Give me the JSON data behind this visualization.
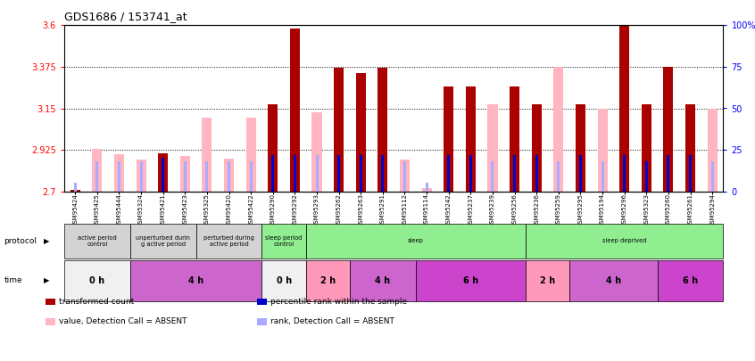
{
  "title": "GDS1686 / 153741_at",
  "samples": [
    "GSM95424",
    "GSM95425",
    "GSM95444",
    "GSM95324",
    "GSM95421",
    "GSM95423",
    "GSM95325",
    "GSM95420",
    "GSM95422",
    "GSM95290",
    "GSM95292",
    "GSM95293",
    "GSM95262",
    "GSM95263",
    "GSM95291",
    "GSM95112",
    "GSM95114",
    "GSM95242",
    "GSM95237",
    "GSM95239",
    "GSM95256",
    "GSM95236",
    "GSM95259",
    "GSM95295",
    "GSM95194",
    "GSM95296",
    "GSM95323",
    "GSM95260",
    "GSM95261",
    "GSM95294"
  ],
  "values": [
    2.71,
    2.93,
    2.9,
    2.87,
    2.905,
    2.89,
    3.1,
    2.875,
    3.1,
    3.17,
    3.58,
    3.13,
    3.37,
    3.34,
    3.37,
    2.87,
    2.72,
    3.27,
    3.27,
    3.17,
    3.27,
    3.17,
    3.375,
    3.17,
    3.15,
    3.72,
    3.17,
    3.375,
    3.17,
    3.15
  ],
  "absent_value": [
    false,
    true,
    true,
    true,
    false,
    true,
    true,
    true,
    true,
    false,
    false,
    true,
    false,
    false,
    false,
    true,
    true,
    false,
    false,
    true,
    false,
    false,
    true,
    false,
    true,
    false,
    false,
    false,
    false,
    true
  ],
  "ranks": [
    5,
    18,
    18,
    18,
    20,
    18,
    18,
    18,
    18,
    22,
    22,
    22,
    22,
    22,
    22,
    18,
    5,
    22,
    22,
    18,
    22,
    22,
    18,
    22,
    18,
    22,
    18,
    22,
    22,
    18
  ],
  "absent_rank": [
    true,
    true,
    true,
    true,
    false,
    true,
    true,
    true,
    true,
    false,
    false,
    true,
    false,
    false,
    false,
    true,
    true,
    false,
    false,
    true,
    false,
    false,
    true,
    false,
    true,
    false,
    false,
    false,
    false,
    true
  ],
  "ylim_left": [
    2.7,
    3.6
  ],
  "ylim_right": [
    0,
    100
  ],
  "yticks_left": [
    2.7,
    2.925,
    3.15,
    3.375,
    3.6
  ],
  "yticks_right": [
    0,
    25,
    50,
    75,
    100
  ],
  "hlines": [
    2.925,
    3.15,
    3.375
  ],
  "protocol_groups": [
    {
      "label": "active period\ncontrol",
      "start": 0,
      "end": 3,
      "color": "#d3d3d3"
    },
    {
      "label": "unperturbed durin\ng active period",
      "start": 3,
      "end": 6,
      "color": "#d3d3d3"
    },
    {
      "label": "perturbed during\nactive period",
      "start": 6,
      "end": 9,
      "color": "#d3d3d3"
    },
    {
      "label": "sleep period\ncontrol",
      "start": 9,
      "end": 11,
      "color": "#90EE90"
    },
    {
      "label": "sleep",
      "start": 11,
      "end": 21,
      "color": "#90EE90"
    },
    {
      "label": "sleep deprived",
      "start": 21,
      "end": 30,
      "color": "#90EE90"
    }
  ],
  "time_groups": [
    {
      "label": "0 h",
      "start": 0,
      "end": 3,
      "color": "#f0f0f0"
    },
    {
      "label": "4 h",
      "start": 3,
      "end": 9,
      "color": "#cc66cc"
    },
    {
      "label": "0 h",
      "start": 9,
      "end": 11,
      "color": "#f0f0f0"
    },
    {
      "label": "2 h",
      "start": 11,
      "end": 13,
      "color": "#ff99bb"
    },
    {
      "label": "4 h",
      "start": 13,
      "end": 16,
      "color": "#cc66cc"
    },
    {
      "label": "6 h",
      "start": 16,
      "end": 21,
      "color": "#cc44cc"
    },
    {
      "label": "2 h",
      "start": 21,
      "end": 23,
      "color": "#ff99bb"
    },
    {
      "label": "4 h",
      "start": 23,
      "end": 27,
      "color": "#cc66cc"
    },
    {
      "label": "6 h",
      "start": 27,
      "end": 30,
      "color": "#cc44cc"
    }
  ],
  "bar_color_present": "#aa0000",
  "bar_color_absent": "#ffb6c1",
  "rank_color_present": "#0000cc",
  "rank_color_absent": "#aaaaff",
  "bar_width": 0.45,
  "rank_bar_width": 0.12,
  "base_value": 2.7,
  "legend_items": [
    {
      "label": "transformed count",
      "color": "#aa0000"
    },
    {
      "label": "percentile rank within the sample",
      "color": "#0000cc"
    },
    {
      "label": "value, Detection Call = ABSENT",
      "color": "#ffb6c1"
    },
    {
      "label": "rank, Detection Call = ABSENT",
      "color": "#aaaaff"
    }
  ]
}
